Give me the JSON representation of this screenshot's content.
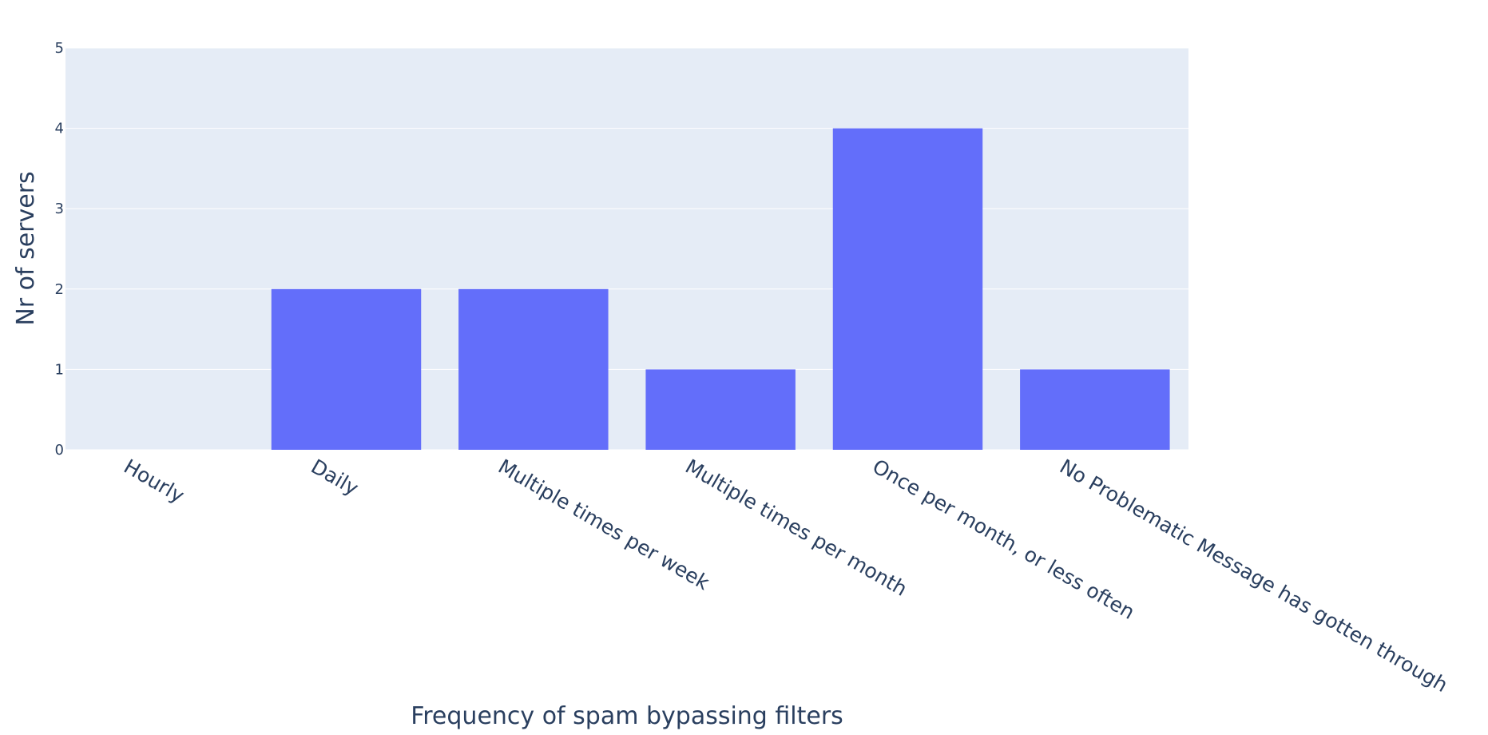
{
  "chart_data": {
    "type": "bar",
    "categories": [
      "Hourly",
      "Daily",
      "Multiple times per week",
      "Multiple times per month",
      "Once per month, or less often",
      "No Problematic Message has gotten through"
    ],
    "values": [
      0,
      2,
      2,
      1,
      4,
      1
    ],
    "title": "",
    "xlabel": "Frequency of spam bypassing filters",
    "ylabel": "Nr of servers",
    "ylim": [
      0,
      5
    ],
    "yticks": [
      "0",
      "1",
      "2",
      "3",
      "4",
      "5"
    ],
    "grid": true,
    "legend": "none",
    "colors": {
      "bar": "#636efa",
      "plot_background": "#e5ecf6",
      "grid": "#ffffff",
      "text": "#2a3f5f"
    }
  }
}
